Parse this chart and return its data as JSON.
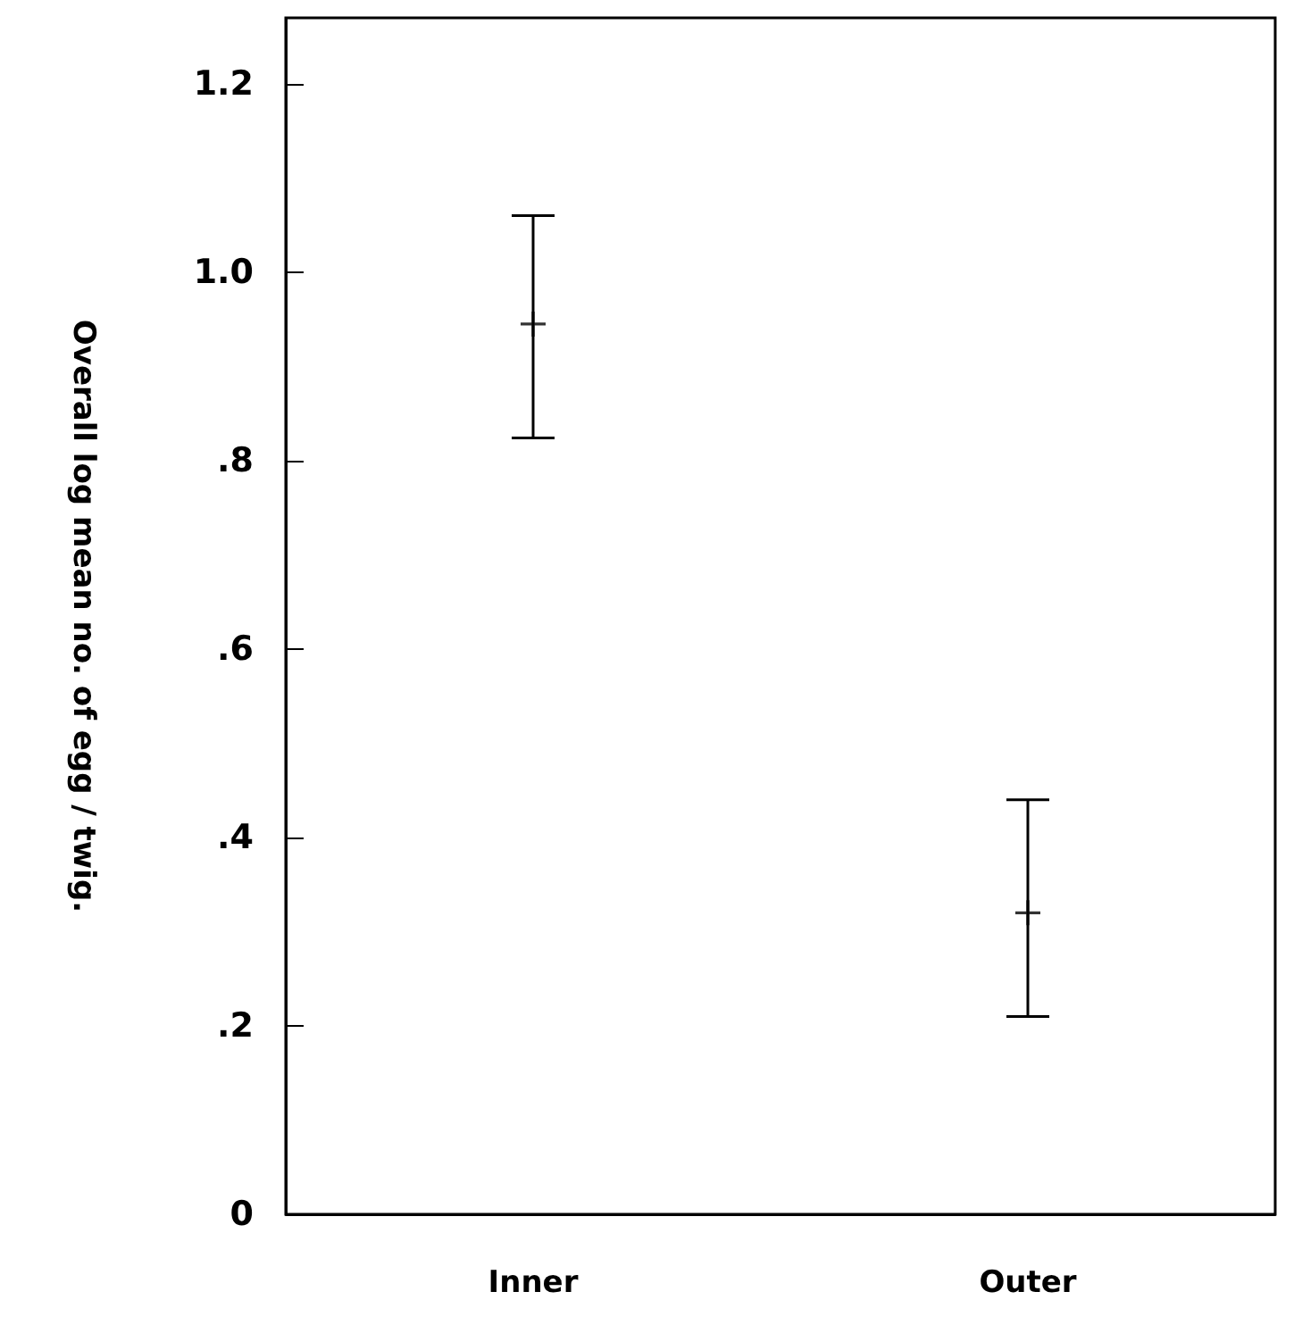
{
  "chart_data": {
    "type": "scatter",
    "ylabel": "Overall log mean no. of egg / twig.",
    "categories": [
      "Inner",
      "Outer"
    ],
    "series": [
      {
        "color": "#000000",
        "values": [
          0.945,
          0.32
        ],
        "errors": [
          [
            0.824,
            1.06
          ],
          [
            0.21,
            0.44
          ]
        ]
      }
    ],
    "ylim": [
      0,
      1.27
    ],
    "yticks": [
      0,
      {
        "value": 0.2,
        "label": ".2"
      },
      {
        "value": 0.4,
        "label": ".4"
      },
      {
        "value": 0.6,
        "label": ".6"
      },
      {
        "value": 0.8,
        "label": ".8"
      },
      {
        "value": 1.0,
        "label": "1.0"
      },
      1.2
    ],
    "grid": false,
    "marker": "cross"
  }
}
